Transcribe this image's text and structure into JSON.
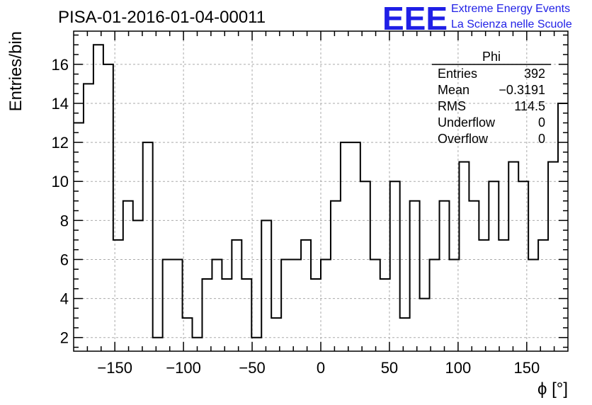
{
  "header": {
    "title": "PISA-01-2016-01-04-00011",
    "logo_text": "EEE",
    "logo_line1": "Extreme Energy Events",
    "logo_line2": "La Scienza nelle Scuole",
    "logo_color": "#1f1fe6"
  },
  "stats": {
    "name": "Phi",
    "rows": [
      {
        "label": "Entries",
        "value": "392"
      },
      {
        "label": "Mean",
        "value": "−0.3191"
      },
      {
        "label": "RMS",
        "value": "114.5"
      },
      {
        "label": "Underflow",
        "value": "0"
      },
      {
        "label": "Overflow",
        "value": "0"
      }
    ]
  },
  "chart_data": {
    "type": "histogram",
    "title": "PISA-01-2016-01-04-00011",
    "xlabel": "ϕ [°]",
    "ylabel": "Entries/bin",
    "xlim": [
      -180,
      180
    ],
    "ylim": [
      1.3,
      17.7
    ],
    "bin_width": 7.2,
    "x_ticks": [
      -150,
      -100,
      -50,
      0,
      50,
      100,
      150
    ],
    "x_tick_labels": [
      "−150",
      "−100",
      "−50",
      "0",
      "50",
      "100",
      "150"
    ],
    "y_ticks": [
      2,
      4,
      6,
      8,
      10,
      12,
      14,
      16
    ],
    "y_tick_labels": [
      "2",
      "4",
      "6",
      "8",
      "10",
      "12",
      "14",
      "16"
    ],
    "grid": true,
    "line_color": "#000000",
    "grid_color": "#aaaaaa",
    "values": [
      13,
      15,
      17,
      16,
      7,
      9,
      8,
      12,
      2,
      6,
      6,
      3,
      2,
      5,
      6,
      5,
      7,
      5,
      2,
      8,
      3,
      6,
      6,
      7,
      5,
      6,
      9,
      12,
      12,
      10,
      6,
      5,
      10,
      3,
      9,
      4,
      6,
      9,
      6,
      11,
      9,
      7,
      10,
      7,
      11,
      10,
      6,
      7,
      11,
      14
    ]
  }
}
